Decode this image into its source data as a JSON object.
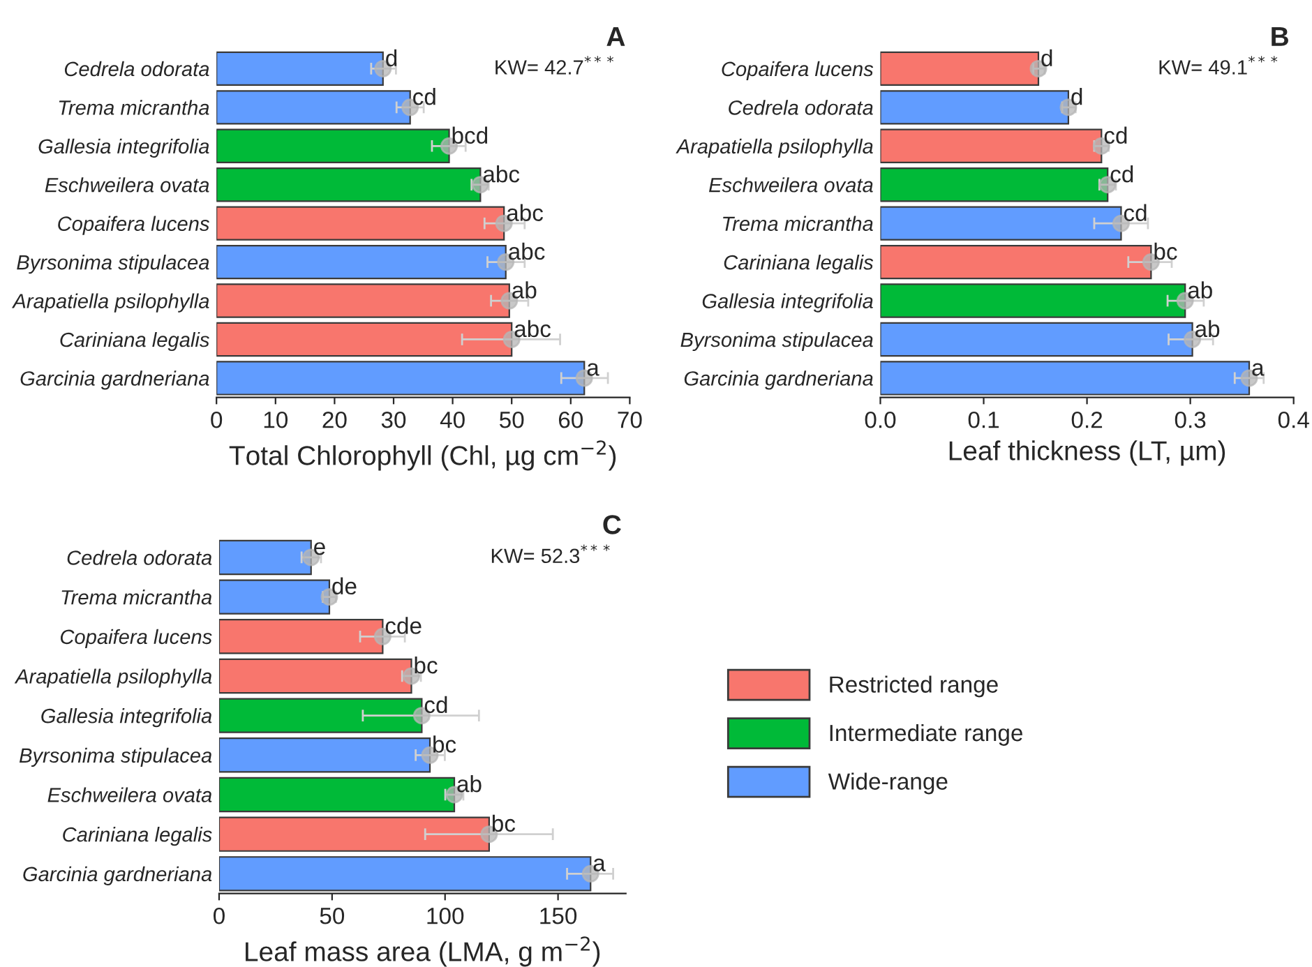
{
  "chart_data": [
    {
      "type": "bar",
      "orientation": "horizontal",
      "categories": [
        "Cedrela odorata",
        "Trema micrantha",
        "Gallesia integrifolia",
        "Eschweilera ovata",
        "Copaifera lucens",
        "Byrsonima stipulacea",
        "Arapatiella psilophylla",
        "Cariniana legalis",
        "Garcinia gardneriana"
      ],
      "xlabel": "Total Chlorophyll (Chl, µg cm$^{−2}$)",
      "xlim": [
        0,
        70
      ],
      "xticks": [
        0,
        10,
        20,
        30,
        40,
        50,
        60,
        70
      ],
      "marker": "circle",
      "legend": false,
      "grid": false,
      "annotations": [
        "A",
        "KW= 42.7$^{***}$"
      ],
      "series": [
        {
          "color": "#f8766d",
          "values": [
            null,
            null,
            null,
            null,
            48.7,
            null,
            49.6,
            50.0,
            null
          ],
          "errors": [
            null,
            null,
            null,
            null,
            [
              45.4,
              52.2
            ],
            null,
            [
              46.5,
              52.8
            ],
            [
              41.6,
              58.2
            ],
            null
          ],
          "value_labels": [
            null,
            null,
            null,
            null,
            "abc",
            null,
            "ab",
            "abc",
            null
          ]
        },
        {
          "color": "#00ba38",
          "values": [
            null,
            null,
            39.4,
            44.7,
            null,
            null,
            null,
            null,
            null
          ],
          "errors": [
            null,
            null,
            [
              36.5,
              42.2
            ],
            [
              43.2,
              46.1
            ],
            null,
            null,
            null,
            null,
            null
          ],
          "value_labels": [
            null,
            null,
            "bcd",
            "abc",
            null,
            null,
            null,
            null,
            null
          ]
        },
        {
          "color": "#619cff",
          "values": [
            28.2,
            32.8,
            null,
            null,
            null,
            49.0,
            null,
            null,
            62.3
          ],
          "errors": [
            [
              26.2,
              30.4
            ],
            [
              30.5,
              35.1
            ],
            null,
            null,
            null,
            [
              45.9,
              52.2
            ],
            null,
            null,
            [
              58.4,
              66.3
            ]
          ],
          "value_labels": [
            "d",
            "cd",
            null,
            null,
            null,
            "abc",
            null,
            null,
            "a"
          ]
        },
        {
          "type": "scatter",
          "color": "#b5b5b5",
          "values": [
            28.2,
            32.8,
            39.4,
            44.7,
            48.7,
            49.0,
            49.6,
            50.0,
            62.3
          ]
        }
      ]
    },
    {
      "type": "bar",
      "orientation": "horizontal",
      "categories": [
        "Copaifera lucens",
        "Cedrela odorata",
        "Arapatiella psilophylla",
        "Eschweilera ovata",
        "Trema micrantha",
        "Cariniana legalis",
        "Gallesia integrifolia",
        "Byrsonima stipulacea",
        "Garcinia gardneriana"
      ],
      "xlabel": "Leaf thickness (LT, µm)",
      "xlim": [
        0,
        0.4
      ],
      "xticks": [
        {
          "value": 0,
          "label": "0.0"
        },
        0.1,
        0.2,
        0.3,
        0.4
      ],
      "marker": "circle",
      "legend": false,
      "grid": false,
      "annotations": [
        "B",
        "KW= 49.1$^{***}$"
      ],
      "series": [
        {
          "color": "#f8766d",
          "values": [
            0.153,
            null,
            0.214,
            null,
            null,
            0.262,
            null,
            null,
            null
          ],
          "errors": [
            [
              0.148,
              0.159
            ],
            null,
            [
              0.207,
              0.221
            ],
            null,
            null,
            [
              0.24,
              0.282
            ],
            null,
            null,
            null
          ],
          "value_labels": [
            "d",
            null,
            "cd",
            null,
            null,
            "bc",
            null,
            null,
            null
          ]
        },
        {
          "color": "#00ba38",
          "values": [
            null,
            null,
            null,
            0.22,
            null,
            null,
            0.295,
            null,
            null
          ],
          "errors": [
            null,
            null,
            null,
            [
              0.212,
              0.228
            ],
            null,
            null,
            [
              0.278,
              0.313
            ],
            null,
            null
          ],
          "value_labels": [
            null,
            null,
            null,
            "cd",
            null,
            null,
            "ab",
            null,
            null
          ]
        },
        {
          "color": "#619cff",
          "values": [
            null,
            0.182,
            null,
            null,
            0.233,
            null,
            null,
            0.302,
            0.357
          ],
          "errors": [
            null,
            [
              0.176,
              0.189
            ],
            null,
            null,
            [
              0.207,
              0.259
            ],
            null,
            null,
            [
              0.279,
              0.322
            ],
            [
              0.343,
              0.371
            ]
          ],
          "value_labels": [
            null,
            "d",
            null,
            null,
            "cd",
            null,
            null,
            "ab",
            "a"
          ]
        },
        {
          "type": "scatter",
          "color": "#b5b5b5",
          "values": [
            0.153,
            0.182,
            0.214,
            0.22,
            0.233,
            0.262,
            0.295,
            0.302,
            0.357
          ]
        }
      ]
    },
    {
      "type": "bar",
      "orientation": "horizontal",
      "categories": [
        "Cedrela odorata",
        "Trema micrantha",
        "Copaifera lucens",
        "Arapatiella psilophylla",
        "Gallesia integrifolia",
        "Byrsonima stipulacea",
        "Eschweilera ovata",
        "Cariniana legalis",
        "Garcinia gardneriana"
      ],
      "xlabel": "Leaf mass area (LMA, g m$^{−2}$)",
      "xlim": [
        0,
        180
      ],
      "xticks": [
        0,
        50,
        100,
        150
      ],
      "marker": "circle",
      "legend": "right",
      "grid": false,
      "annotations": [
        "C",
        "KW= 52.3$^{***}$"
      ],
      "series": [
        {
          "name": "Restricted range",
          "color": "#f8766d",
          "values": [
            null,
            null,
            72.4,
            85.1,
            null,
            null,
            null,
            119.5,
            null
          ],
          "errors": [
            null,
            null,
            [
              62.4,
              82.2
            ],
            [
              81.0,
              89.3
            ],
            null,
            null,
            null,
            [
              91.2,
              147.7
            ],
            null
          ],
          "value_labels": [
            null,
            null,
            "cde",
            "bc",
            null,
            null,
            null,
            "bc",
            null
          ]
        },
        {
          "name": "Intermediate range",
          "color": "#00ba38",
          "values": [
            null,
            null,
            null,
            null,
            89.7,
            null,
            104.1,
            null,
            null
          ],
          "errors": [
            null,
            null,
            null,
            null,
            [
              63.6,
              115.0
            ],
            null,
            [
              100.1,
              108.1
            ],
            null,
            null
          ],
          "value_labels": [
            null,
            null,
            null,
            null,
            "cd",
            null,
            "ab",
            null,
            null
          ]
        },
        {
          "name": "Wide-range",
          "color": "#619cff",
          "values": [
            40.7,
            48.8,
            null,
            null,
            null,
            93.3,
            null,
            null,
            164.4
          ],
          "errors": [
            [
              36.5,
              45.1
            ],
            [
              45.9,
              51.7
            ],
            null,
            null,
            null,
            [
              87.0,
              99.9
            ],
            null,
            null,
            [
              154.0,
              174.4
            ]
          ],
          "value_labels": [
            "e",
            "de",
            null,
            null,
            null,
            "bc",
            null,
            null,
            "a"
          ]
        },
        {
          "type": "scatter",
          "color": "#b5b5b5",
          "values": [
            40.7,
            48.8,
            72.4,
            85.1,
            89.7,
            93.3,
            104.1,
            119.5,
            164.4
          ]
        }
      ]
    }
  ]
}
